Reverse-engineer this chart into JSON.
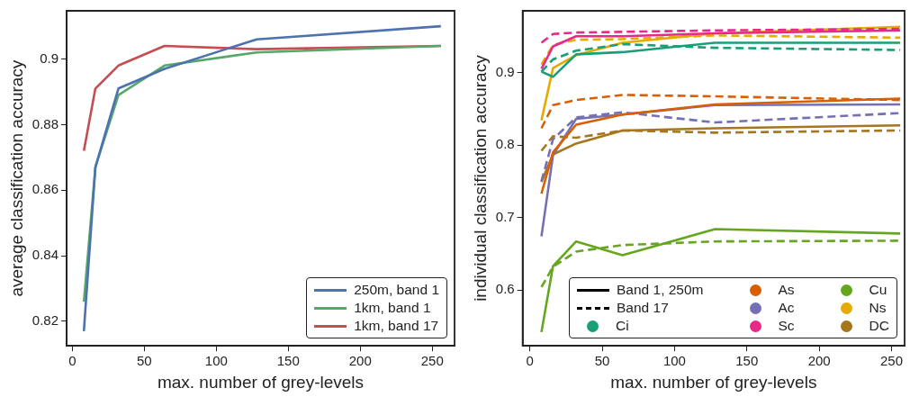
{
  "chart_data": [
    {
      "type": "line",
      "xlabel": "max. number of grey-levels",
      "ylabel": "average classification accuracy",
      "x": [
        8,
        16,
        32,
        64,
        128,
        256
      ],
      "xlim": [
        -4,
        265.5
      ],
      "xticks": [
        0,
        50,
        100,
        150,
        200,
        250
      ],
      "ylim": [
        0.8125,
        0.9147
      ],
      "yticks": [
        0.82,
        0.84,
        0.86,
        0.88,
        0.9
      ],
      "marker": "none",
      "grid": false,
      "legend": "bottom right",
      "series": [
        {
          "name": "250m, band 1",
          "color": "#4c72b0",
          "values": [
            0.817,
            0.867,
            0.891,
            0.897,
            0.906,
            0.91
          ]
        },
        {
          "name": "1km, band 1",
          "color": "#55a868",
          "values": [
            0.826,
            0.867,
            0.889,
            0.898,
            0.902,
            0.904
          ]
        },
        {
          "name": "1km, band 17",
          "color": "#c44e52",
          "values": [
            0.872,
            0.891,
            0.898,
            0.904,
            0.903,
            0.904
          ]
        }
      ]
    },
    {
      "type": "line",
      "xlabel": "max. number of grey-levels",
      "ylabel": "individual classification accuracy",
      "x": [
        8,
        16,
        32,
        64,
        128,
        256
      ],
      "xlim": [
        -5,
        259
      ],
      "xticks": [
        0,
        50,
        100,
        150,
        200,
        250
      ],
      "ylim": [
        0.523,
        0.985
      ],
      "yticks": [
        0.6,
        0.7,
        0.8,
        0.9
      ],
      "marker": "none",
      "grid": false,
      "legend": "bottom right",
      "annotations": [
        "Band 1, 250m",
        "Band 17"
      ],
      "series": [
        {
          "name": "Ci",
          "color": "#1b9e77",
          "line_style": "solid",
          "values": [
            0.901,
            0.894,
            0.925,
            0.928,
            0.941,
            0.941
          ]
        },
        {
          "color": "#1b9e77",
          "line_style": "dashed",
          "values": [
            0.901,
            0.918,
            0.93,
            0.939,
            0.934,
            0.931
          ]
        },
        {
          "name": "As",
          "color": "#d95f02",
          "line_style": "solid",
          "values": [
            0.733,
            0.79,
            0.828,
            0.842,
            0.856,
            0.864
          ]
        },
        {
          "color": "#d95f02",
          "line_style": "dashed",
          "values": [
            0.823,
            0.855,
            0.862,
            0.869,
            0.867,
            0.862
          ]
        },
        {
          "name": "Ac",
          "color": "#7570b3",
          "line_style": "solid",
          "values": [
            0.674,
            0.786,
            0.836,
            0.842,
            0.855,
            0.856
          ]
        },
        {
          "color": "#7570b3",
          "line_style": "dashed",
          "values": [
            0.75,
            0.808,
            0.838,
            0.845,
            0.831,
            0.844
          ]
        },
        {
          "name": "Sc",
          "color": "#e7298a",
          "line_style": "solid",
          "values": [
            0.905,
            0.936,
            0.95,
            0.95,
            0.954,
            0.958
          ]
        },
        {
          "color": "#e7298a",
          "line_style": "dashed",
          "values": [
            0.941,
            0.953,
            0.955,
            0.956,
            0.958,
            0.96
          ]
        },
        {
          "name": "Cu",
          "color": "#66a61e",
          "line_style": "solid",
          "values": [
            0.542,
            0.633,
            0.667,
            0.648,
            0.684,
            0.678
          ]
        },
        {
          "color": "#66a61e",
          "line_style": "dashed",
          "values": [
            0.604,
            0.632,
            0.653,
            0.662,
            0.667,
            0.668
          ]
        },
        {
          "name": "Ns",
          "color": "#e6ab02",
          "line_style": "solid",
          "values": [
            0.834,
            0.906,
            0.924,
            0.941,
            0.954,
            0.963
          ]
        },
        {
          "color": "#e6ab02",
          "line_style": "dashed",
          "values": [
            0.911,
            0.938,
            0.945,
            0.946,
            0.951,
            0.948
          ]
        },
        {
          "name": "DC",
          "color": "#a6761d",
          "line_style": "solid",
          "values": [
            0.749,
            0.787,
            0.802,
            0.82,
            0.823,
            0.827
          ]
        },
        {
          "color": "#a6761d",
          "line_style": "dashed",
          "values": [
            0.792,
            0.812,
            0.81,
            0.82,
            0.817,
            0.82
          ]
        }
      ]
    }
  ]
}
